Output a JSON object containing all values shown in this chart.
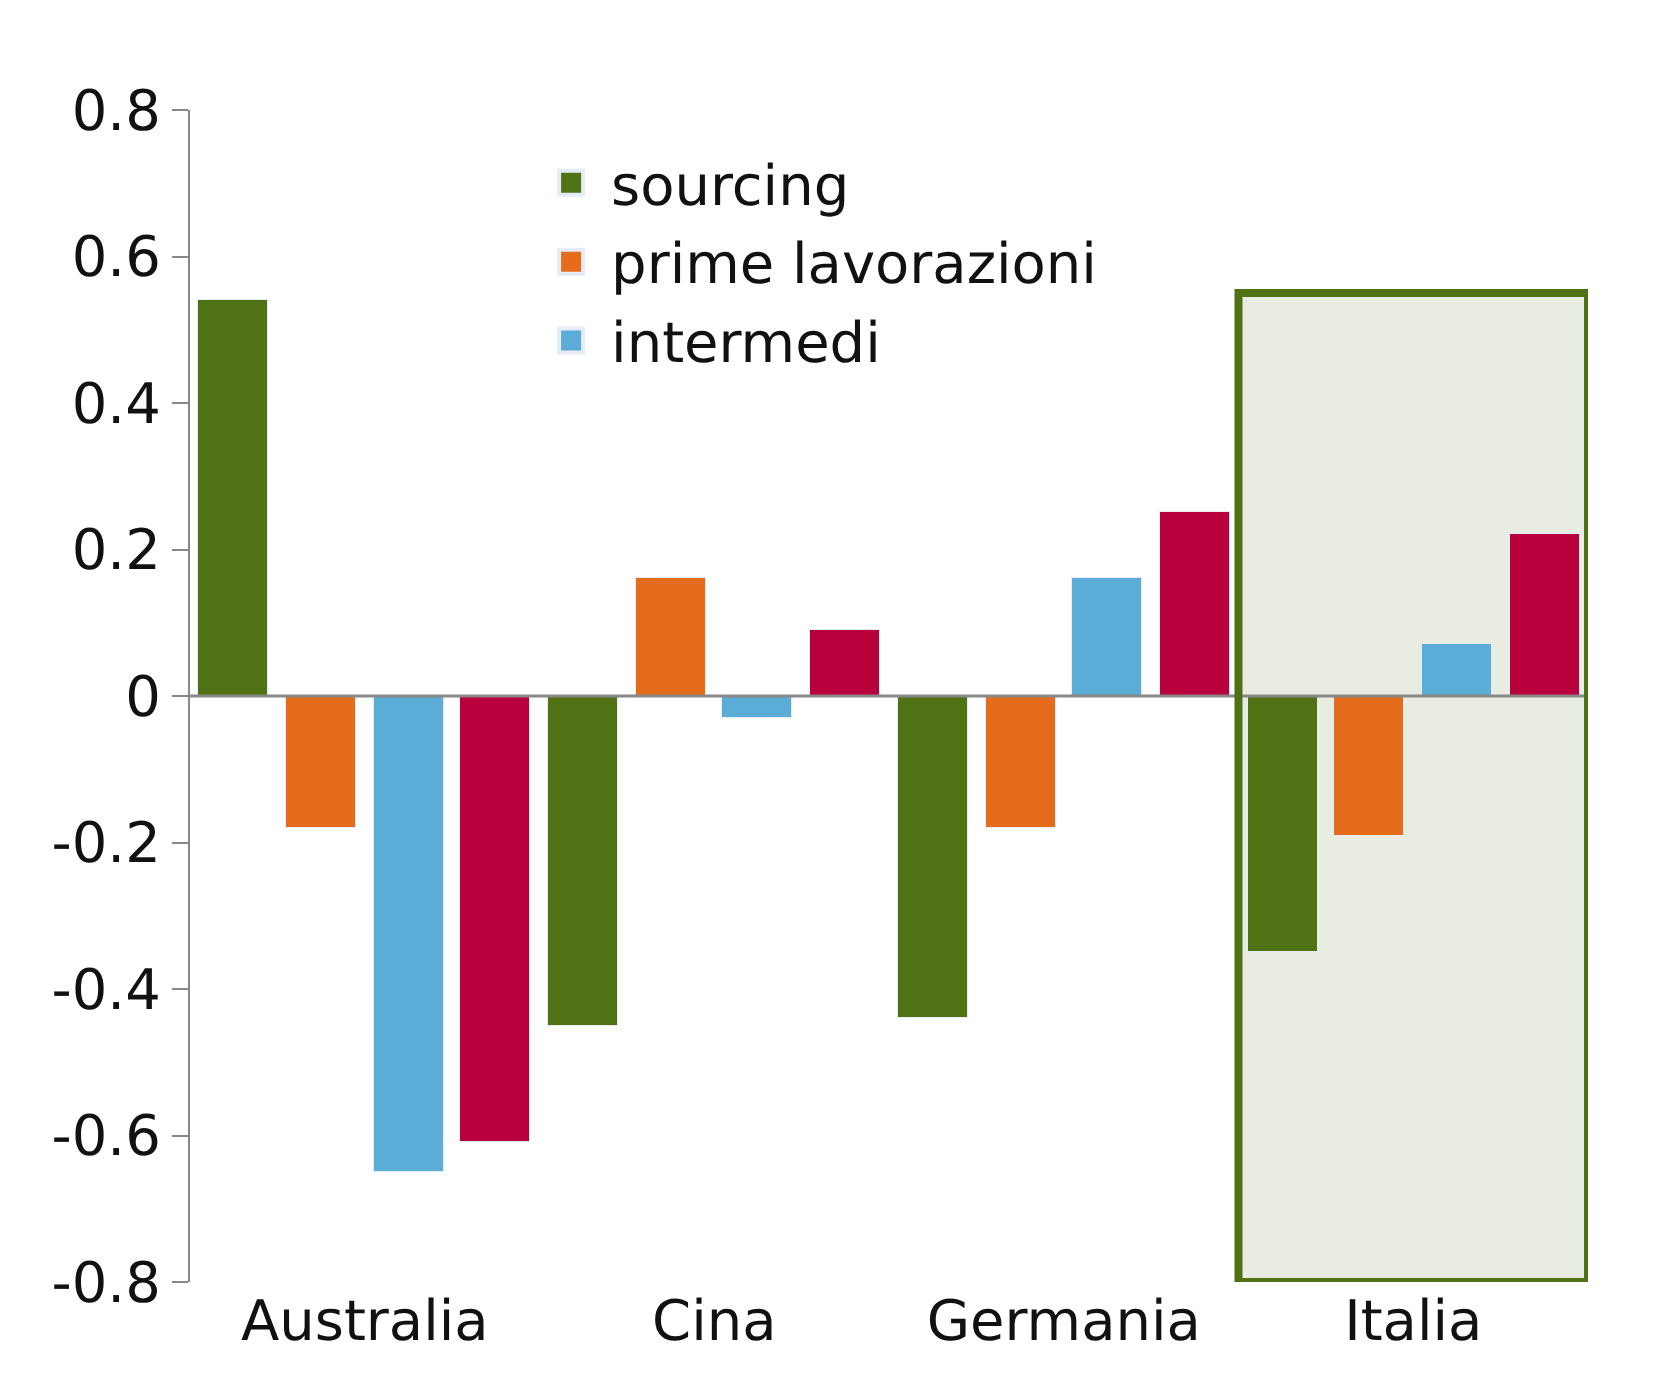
{
  "chart_data": {
    "type": "bar",
    "categories": [
      "Australia",
      "Cina",
      "Germania",
      "Italia"
    ],
    "series": [
      {
        "name": "sourcing",
        "color": "#4f7314",
        "values": [
          0.54,
          -0.45,
          -0.44,
          -0.35
        ]
      },
      {
        "name": "prime lavorazioni",
        "color": "#e46c1a",
        "values": [
          -0.18,
          0.16,
          -0.18,
          -0.19
        ]
      },
      {
        "name": "intermedi",
        "color": "#5bacd6",
        "values": [
          -0.65,
          -0.03,
          0.16,
          0.07
        ]
      },
      {
        "color": "#b8003c",
        "values": [
          -0.61,
          0.09,
          0.25,
          0.22
        ]
      }
    ],
    "ylim": [
      -0.8,
      0.8
    ],
    "yticks": [
      -0.8,
      -0.6,
      -0.4,
      -0.2,
      0,
      0.2,
      0.4,
      0.6,
      0.8
    ],
    "bands": [
      {
        "axis": "x",
        "from": "Italia",
        "to": "Italia",
        "color": "#4f7314"
      }
    ],
    "ref_lines": [
      {
        "axis": "y",
        "value": 0,
        "color": "#888888"
      }
    ],
    "grid": false,
    "legend": "top"
  }
}
